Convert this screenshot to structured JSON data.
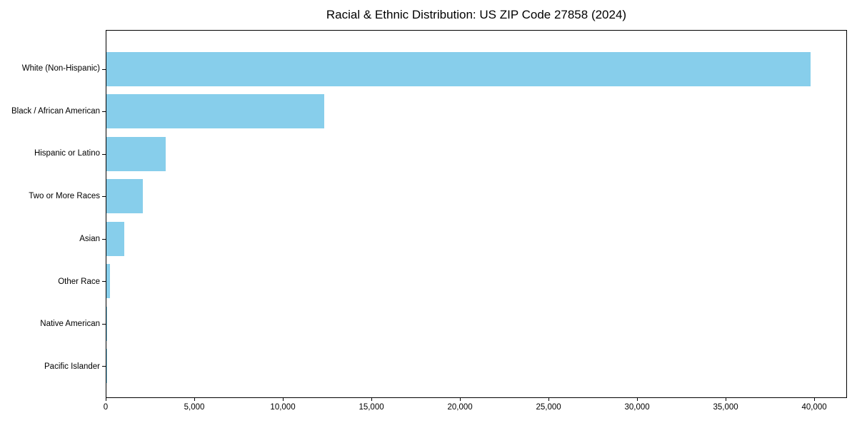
{
  "chart_data": {
    "type": "bar",
    "orientation": "horizontal",
    "title": "Racial & Ethnic Distribution: US ZIP Code 27858 (2024)",
    "categories": [
      "White (Non-Hispanic)",
      "Black / African American",
      "Hispanic or Latino",
      "Two or More Races",
      "Asian",
      "Other Race",
      "Native American",
      "Pacific Islander"
    ],
    "values": [
      39850,
      12340,
      3350,
      2060,
      990,
      200,
      40,
      10
    ],
    "xlabel": "",
    "ylabel": "",
    "xlim": [
      0,
      41850
    ],
    "xticks": {
      "values": [
        0,
        5000,
        10000,
        15000,
        20000,
        25000,
        30000,
        35000,
        40000
      ],
      "labels": [
        "0",
        "5,000",
        "10,000",
        "15,000",
        "20,000",
        "25,000",
        "30,000",
        "35,000",
        "40,000"
      ]
    },
    "bar_color": "#87CEEB",
    "axis_color": "#000000",
    "background_color": "#ffffff",
    "grid": false,
    "legend": "none"
  }
}
